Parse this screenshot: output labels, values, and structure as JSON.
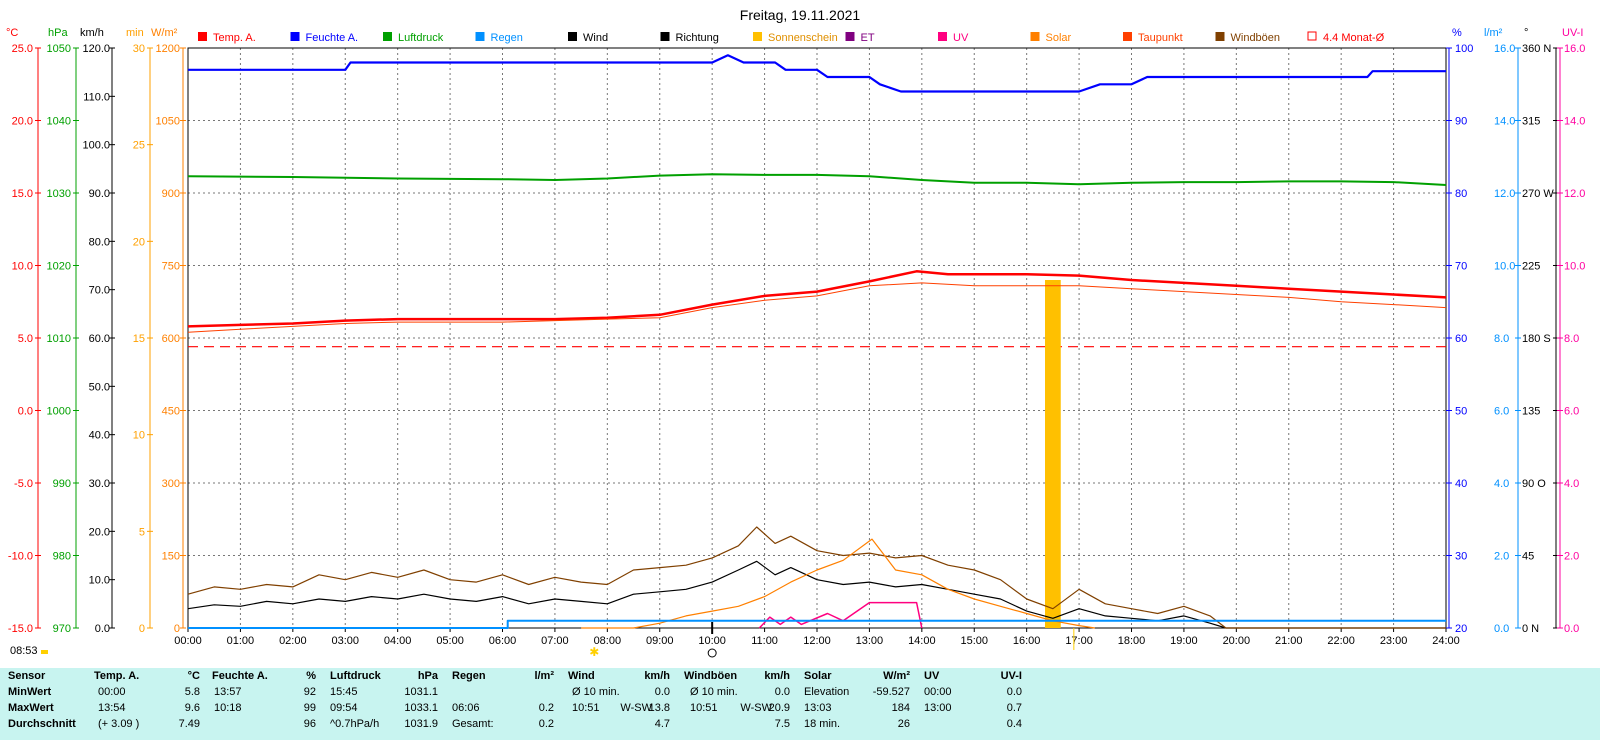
{
  "title": "Freitag, 19.11.2021",
  "timestamp": "08:53",
  "axes": {
    "temp": {
      "unit": "°C",
      "color": "#ff0000",
      "ticks": [
        "25.0",
        "20.0",
        "15.0",
        "10.0",
        "5.0",
        "0.0",
        "-5.0",
        "-10.0",
        "-15.0"
      ]
    },
    "pressure": {
      "unit": "hPa",
      "color": "#00a000",
      "ticks": [
        "1050",
        "1040",
        "1030",
        "1020",
        "1010",
        "1000",
        "990",
        "980",
        "970"
      ]
    },
    "wind": {
      "unit": "km/h",
      "color": "#000000",
      "ticks": [
        "120.0",
        "110.0",
        "100.0",
        "90.0",
        "80.0",
        "70.0",
        "60.0",
        "50.0",
        "40.0",
        "30.0",
        "20.0",
        "10.0",
        "0.0"
      ]
    },
    "sunshine": {
      "unit": "min",
      "color": "#ffa000",
      "ticks": [
        "30",
        "25",
        "20",
        "15",
        "10",
        "5",
        "0"
      ]
    },
    "solar": {
      "unit": "W/m²",
      "color": "#ff8000",
      "ticks": [
        "1200",
        "1050",
        "900",
        "750",
        "600",
        "450",
        "300",
        "150",
        "0"
      ]
    },
    "humidity": {
      "unit": "%",
      "color": "#0000ff",
      "ticks": [
        "100",
        "90",
        "80",
        "70",
        "60",
        "50",
        "40",
        "30",
        "20"
      ]
    },
    "rain": {
      "unit": "l/m²",
      "color": "#0090ff",
      "ticks": [
        "16.0",
        "14.0",
        "12.0",
        "10.0",
        "8.0",
        "6.0",
        "4.0",
        "2.0",
        "0.0"
      ]
    },
    "direction": {
      "unit": "°",
      "color": "#000000",
      "ticks": [
        "360 N",
        "315",
        "270 W",
        "225",
        "180 S",
        "135",
        "90 O",
        "45",
        "0 N"
      ]
    },
    "uv": {
      "unit": "UV-I",
      "color": "#ff00a0",
      "ticks": [
        "16.0",
        "14.0",
        "12.0",
        "10.0",
        "8.0",
        "6.0",
        "4.0",
        "2.0",
        "0.0"
      ]
    },
    "time_ticks": [
      "00:00",
      "01:00",
      "02:00",
      "03:00",
      "04:00",
      "05:00",
      "06:00",
      "07:00",
      "08:00",
      "09:00",
      "10:00",
      "11:00",
      "12:00",
      "13:00",
      "14:00",
      "15:00",
      "16:00",
      "17:00",
      "18:00",
      "19:00",
      "20:00",
      "21:00",
      "22:00",
      "23:00",
      "24:00"
    ]
  },
  "legend": [
    {
      "label": "Temp. A.",
      "color": "#ff0000"
    },
    {
      "label": "Feuchte A.",
      "color": "#0000ff"
    },
    {
      "label": "Luftdruck",
      "color": "#00a000"
    },
    {
      "label": "Regen",
      "color": "#0090ff"
    },
    {
      "label": "Wind",
      "color": "#000000"
    },
    {
      "label": "Richtung",
      "color": "#000000"
    },
    {
      "label": "Sonnenschein",
      "color": "#ffc000"
    },
    {
      "label": "ET",
      "color": "#800080"
    },
    {
      "label": "UV",
      "color": "#ff0080"
    },
    {
      "label": "Solar",
      "color": "#ff8000"
    },
    {
      "label": "Taupunkt",
      "color": "#ff4000"
    },
    {
      "label": "Windböen",
      "color": "#804000"
    },
    {
      "label": "4.4 Monat-Ø",
      "color": "#ff0000"
    }
  ],
  "chart_data": {
    "type": "line",
    "title": "Freitag, 19.11.2021",
    "x_unit": "hour of day",
    "xlim": [
      0,
      24
    ],
    "monthly_avg_temp": 4.4,
    "series": [
      {
        "name": "Temp. A.",
        "unit": "°C",
        "color": "#ff0000",
        "points": [
          [
            0,
            5.8
          ],
          [
            1,
            5.9
          ],
          [
            2,
            6.0
          ],
          [
            3,
            6.2
          ],
          [
            4,
            6.3
          ],
          [
            5,
            6.3
          ],
          [
            6,
            6.3
          ],
          [
            7,
            6.3
          ],
          [
            8,
            6.4
          ],
          [
            9,
            6.6
          ],
          [
            10,
            7.3
          ],
          [
            11,
            7.9
          ],
          [
            12,
            8.2
          ],
          [
            13,
            8.9
          ],
          [
            13.9,
            9.6
          ],
          [
            14.5,
            9.4
          ],
          [
            15,
            9.4
          ],
          [
            16,
            9.4
          ],
          [
            17,
            9.3
          ],
          [
            18,
            9.0
          ],
          [
            19,
            8.8
          ],
          [
            20,
            8.6
          ],
          [
            21,
            8.4
          ],
          [
            22,
            8.2
          ],
          [
            23,
            8.0
          ],
          [
            24,
            7.8
          ]
        ]
      },
      {
        "name": "Taupunkt",
        "unit": "°C",
        "color": "#ff4000",
        "points": [
          [
            0,
            5.4
          ],
          [
            1,
            5.6
          ],
          [
            2,
            5.8
          ],
          [
            3,
            6.0
          ],
          [
            4,
            6.1
          ],
          [
            5,
            6.1
          ],
          [
            6,
            6.1
          ],
          [
            7,
            6.2
          ],
          [
            8,
            6.3
          ],
          [
            9,
            6.4
          ],
          [
            10,
            7.1
          ],
          [
            11,
            7.6
          ],
          [
            12,
            7.9
          ],
          [
            13,
            8.6
          ],
          [
            14,
            8.8
          ],
          [
            15,
            8.6
          ],
          [
            16,
            8.6
          ],
          [
            17,
            8.6
          ],
          [
            18,
            8.4
          ],
          [
            19,
            8.2
          ],
          [
            20,
            8.0
          ],
          [
            21,
            7.8
          ],
          [
            22,
            7.5
          ],
          [
            23,
            7.3
          ],
          [
            24,
            7.1
          ]
        ]
      },
      {
        "name": "Feuchte A.",
        "unit": "%",
        "color": "#0000ff",
        "points": [
          [
            0,
            97
          ],
          [
            3,
            97
          ],
          [
            3.1,
            98
          ],
          [
            8,
            98
          ],
          [
            10,
            98
          ],
          [
            10.3,
            99
          ],
          [
            10.6,
            98
          ],
          [
            11.2,
            98
          ],
          [
            11.4,
            97
          ],
          [
            12,
            97
          ],
          [
            12.2,
            96
          ],
          [
            13,
            96
          ],
          [
            13.2,
            95
          ],
          [
            13.6,
            94
          ],
          [
            14.5,
            94
          ],
          [
            15,
            94
          ],
          [
            17,
            94
          ],
          [
            17.4,
            95
          ],
          [
            18,
            95
          ],
          [
            18.3,
            96
          ],
          [
            19,
            96
          ],
          [
            20,
            96
          ],
          [
            22,
            96
          ],
          [
            22.5,
            96
          ],
          [
            22.6,
            96.8
          ],
          [
            24,
            96.8
          ]
        ]
      },
      {
        "name": "Luftdruck",
        "unit": "hPa",
        "color": "#00a000",
        "points": [
          [
            0,
            1032.3
          ],
          [
            2,
            1032.2
          ],
          [
            4,
            1032.0
          ],
          [
            6,
            1031.9
          ],
          [
            7,
            1031.8
          ],
          [
            8,
            1032.0
          ],
          [
            9,
            1032.4
          ],
          [
            10,
            1032.6
          ],
          [
            11,
            1032.5
          ],
          [
            12,
            1032.5
          ],
          [
            13,
            1032.3
          ],
          [
            14,
            1031.8
          ],
          [
            15,
            1031.4
          ],
          [
            16,
            1031.4
          ],
          [
            17,
            1031.2
          ],
          [
            18,
            1031.4
          ],
          [
            19,
            1031.5
          ],
          [
            20,
            1031.5
          ],
          [
            21,
            1031.6
          ],
          [
            22,
            1031.6
          ],
          [
            23,
            1031.5
          ],
          [
            24,
            1031.1
          ]
        ]
      },
      {
        "name": "Wind",
        "unit": "km/h",
        "color": "#000000",
        "points": [
          [
            0,
            4.0
          ],
          [
            0.5,
            4.8
          ],
          [
            1,
            4.5
          ],
          [
            1.5,
            5.5
          ],
          [
            2,
            5.0
          ],
          [
            2.5,
            6.0
          ],
          [
            3,
            5.5
          ],
          [
            3.5,
            6.5
          ],
          [
            4,
            6.0
          ],
          [
            4.5,
            7.0
          ],
          [
            5,
            6.0
          ],
          [
            5.5,
            5.5
          ],
          [
            6,
            6.5
          ],
          [
            6.5,
            5.0
          ],
          [
            7,
            6.0
          ],
          [
            7.5,
            5.5
          ],
          [
            8,
            5.0
          ],
          [
            8.5,
            7.0
          ],
          [
            9,
            7.5
          ],
          [
            9.5,
            8.0
          ],
          [
            10,
            9.5
          ],
          [
            10.5,
            12.0
          ],
          [
            10.85,
            13.8
          ],
          [
            11.2,
            11.0
          ],
          [
            11.5,
            12.5
          ],
          [
            12,
            10.0
          ],
          [
            12.5,
            9.0
          ],
          [
            13,
            9.5
          ],
          [
            13.5,
            8.5
          ],
          [
            14,
            9.0
          ],
          [
            14.5,
            8.0
          ],
          [
            15,
            7.0
          ],
          [
            15.5,
            6.0
          ],
          [
            16,
            3.5
          ],
          [
            16.5,
            2.0
          ],
          [
            17,
            4.0
          ],
          [
            17.5,
            2.5
          ],
          [
            18,
            2.0
          ],
          [
            18.5,
            1.5
          ],
          [
            19,
            2.5
          ],
          [
            19.5,
            1.0
          ],
          [
            19.8,
            0.0
          ],
          [
            24,
            0.0
          ]
        ]
      },
      {
        "name": "Windböen",
        "unit": "km/h",
        "color": "#804000",
        "points": [
          [
            0,
            7.0
          ],
          [
            0.5,
            8.5
          ],
          [
            1,
            8.0
          ],
          [
            1.5,
            9.0
          ],
          [
            2,
            8.5
          ],
          [
            2.5,
            11.0
          ],
          [
            3,
            10.0
          ],
          [
            3.5,
            11.5
          ],
          [
            4,
            10.5
          ],
          [
            4.5,
            12.0
          ],
          [
            5,
            10.0
          ],
          [
            5.5,
            9.5
          ],
          [
            6,
            11.0
          ],
          [
            6.5,
            9.0
          ],
          [
            7,
            10.5
          ],
          [
            7.5,
            9.5
          ],
          [
            8,
            9.0
          ],
          [
            8.5,
            12.0
          ],
          [
            9,
            12.5
          ],
          [
            9.5,
            13.0
          ],
          [
            10,
            14.5
          ],
          [
            10.5,
            17.0
          ],
          [
            10.85,
            20.9
          ],
          [
            11.2,
            17.5
          ],
          [
            11.5,
            19.0
          ],
          [
            12,
            16.0
          ],
          [
            12.5,
            15.0
          ],
          [
            13,
            15.5
          ],
          [
            13.5,
            14.5
          ],
          [
            14,
            15.0
          ],
          [
            14.5,
            13.0
          ],
          [
            15,
            12.0
          ],
          [
            15.5,
            10.0
          ],
          [
            16,
            6.0
          ],
          [
            16.5,
            4.0
          ],
          [
            17,
            8.0
          ],
          [
            17.5,
            5.0
          ],
          [
            18,
            4.0
          ],
          [
            18.5,
            3.0
          ],
          [
            19,
            4.5
          ],
          [
            19.5,
            2.5
          ],
          [
            19.8,
            0.0
          ],
          [
            24,
            0.0
          ]
        ]
      },
      {
        "name": "Solar",
        "unit": "W/m²",
        "color": "#ff8000",
        "points": [
          [
            7.5,
            0
          ],
          [
            8.5,
            0
          ],
          [
            9,
            10
          ],
          [
            9.5,
            25
          ],
          [
            10,
            35
          ],
          [
            10.5,
            45
          ],
          [
            11,
            65
          ],
          [
            11.5,
            95
          ],
          [
            12,
            120
          ],
          [
            12.5,
            140
          ],
          [
            13.05,
            184
          ],
          [
            13.5,
            120
          ],
          [
            14,
            110
          ],
          [
            14.5,
            80
          ],
          [
            15,
            60
          ],
          [
            15.5,
            45
          ],
          [
            16,
            30
          ],
          [
            16.5,
            15
          ],
          [
            17,
            5
          ],
          [
            17.3,
            0
          ]
        ]
      },
      {
        "name": "UV",
        "unit": "UV-I",
        "color": "#ff0080",
        "points": [
          [
            10.9,
            0
          ],
          [
            11.1,
            0.3
          ],
          [
            11.3,
            0.1
          ],
          [
            11.5,
            0.3
          ],
          [
            11.7,
            0.1
          ],
          [
            12.2,
            0.4
          ],
          [
            12.5,
            0.2
          ],
          [
            12.8,
            0.5
          ],
          [
            13.0,
            0.7
          ],
          [
            13.5,
            0.7
          ],
          [
            13.9,
            0.7
          ],
          [
            14.0,
            0
          ]
        ]
      },
      {
        "name": "Regen",
        "unit": "l/m²",
        "color": "#0090ff",
        "points": [
          [
            0,
            0
          ],
          [
            6.1,
            0
          ],
          [
            6.1,
            0.2
          ],
          [
            24,
            0.2
          ]
        ]
      },
      {
        "name": "Sonnenschein",
        "unit": "min",
        "color": "#ffc000",
        "bars": [
          [
            16.35,
            16.65,
            18
          ]
        ]
      }
    ]
  },
  "stats": {
    "headers": {
      "sensor": "Sensor",
      "temp": "Temp. A.",
      "temp_unit": "°C",
      "hum": "Feuchte A.",
      "hum_unit": "%",
      "press": "Luftdruck",
      "press_unit": "hPa",
      "rain": "Regen",
      "rain_unit": "l/m²",
      "wind": "Wind",
      "wind_unit": "km/h",
      "gust": "Windböen",
      "gust_unit": "km/h",
      "solar": "Solar",
      "solar_unit": "W/m²",
      "uv": "UV",
      "uv_unit": "UV-I"
    },
    "rows": [
      {
        "label": "MinWert",
        "temp_time": "00:00",
        "temp_val": "5.8",
        "hum_time": "13:57",
        "hum_val": "92",
        "press_time": "15:45",
        "press_val": "1031.1",
        "rain_time": "",
        "rain_val": "",
        "wind_time": "Ø 10 min.",
        "wind_dir": "",
        "wind_val": "0.0",
        "gust_time": "Ø 10 min.",
        "gust_dir": "",
        "gust_val": "0.0",
        "solar_time": "Elevation",
        "solar_val": "-59.527",
        "uv_time": "00:00",
        "uv_val": "0.0"
      },
      {
        "label": "MaxWert",
        "temp_time": "13:54",
        "temp_val": "9.6",
        "hum_time": "10:18",
        "hum_val": "99",
        "press_time": "09:54",
        "press_val": "1033.1",
        "rain_time": "06:06",
        "rain_val": "0.2",
        "wind_time": "10:51",
        "wind_dir": "W-SW",
        "wind_val": "13.8",
        "gust_time": "10:51",
        "gust_dir": "W-SW",
        "gust_val": "20.9",
        "solar_time": "13:03",
        "solar_val": "184",
        "uv_time": "13:00",
        "uv_val": "0.7"
      },
      {
        "label": "Durchschnitt",
        "temp_time": "(+ 3.09 )",
        "temp_val": "7.49",
        "hum_time": "",
        "hum_val": "96",
        "press_time": "^0.7hPa/h",
        "press_val": "1031.9",
        "rain_time": "Gesamt:",
        "rain_val": "0.2",
        "wind_time": "",
        "wind_dir": "",
        "wind_val": "4.7",
        "gust_time": "",
        "gust_dir": "",
        "gust_val": "7.5",
        "solar_time": "18 min.",
        "solar_val": "26",
        "uv_time": "",
        "uv_val": "0.4"
      }
    ]
  }
}
